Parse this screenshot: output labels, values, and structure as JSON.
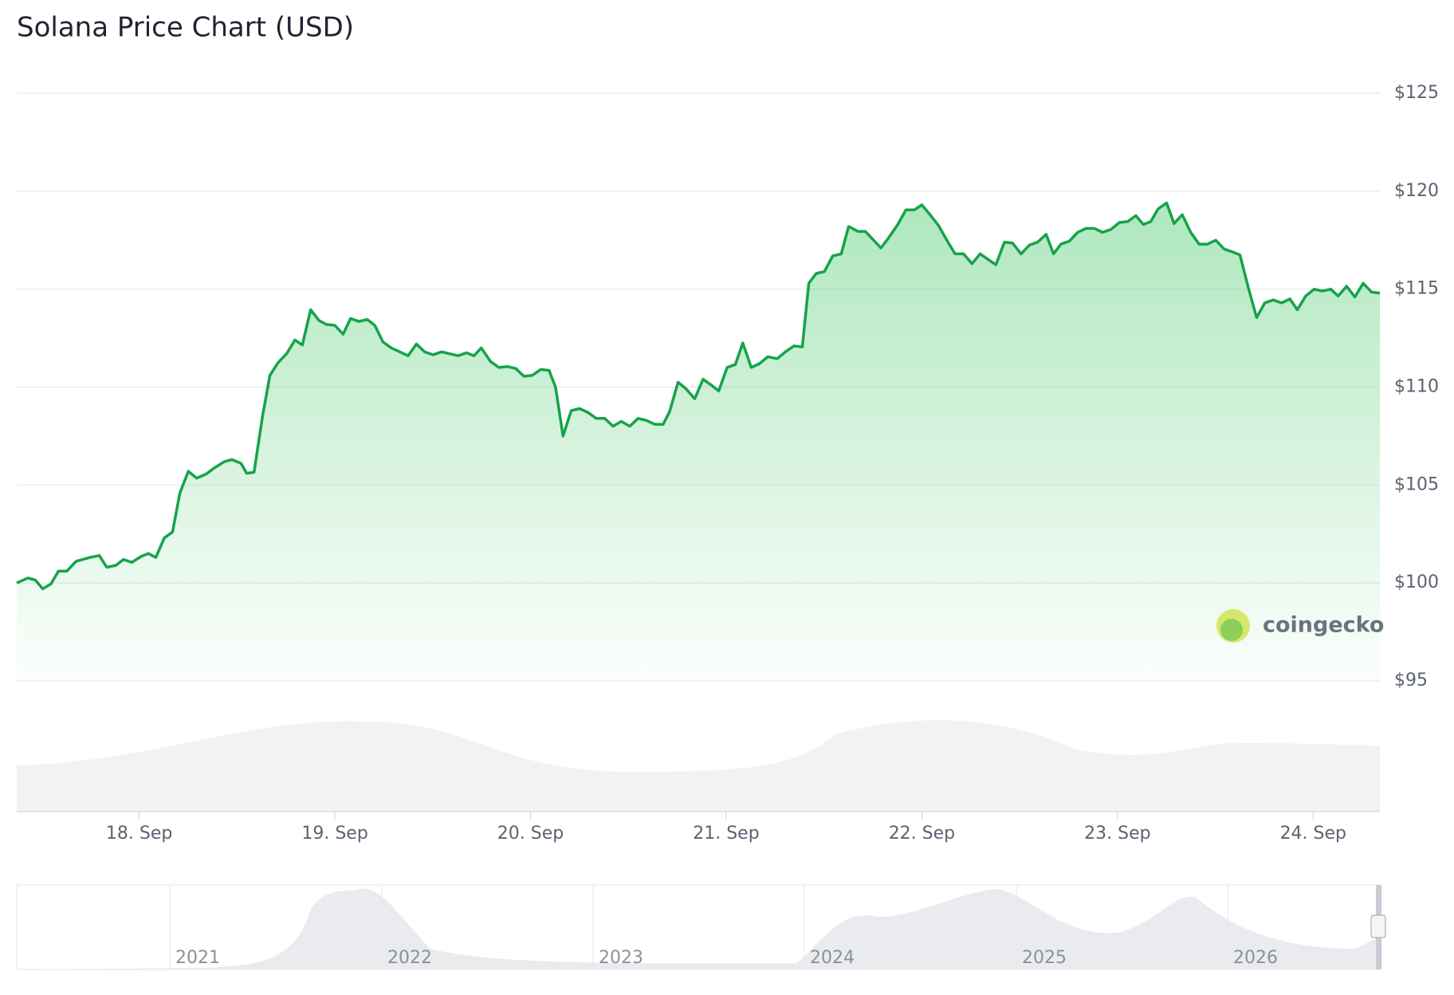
{
  "chart_data": {
    "type": "line",
    "title": "Solana Price Chart (USD)",
    "x": [
      17.374,
      17.431,
      17.469,
      17.507,
      17.549,
      17.587,
      17.63,
      17.677,
      17.748,
      17.796,
      17.834,
      17.881,
      17.919,
      17.962,
      18.009,
      18.047,
      18.085,
      18.128,
      18.17,
      18.208,
      18.251,
      18.293,
      18.341,
      18.388,
      18.436,
      18.474,
      18.521,
      18.549,
      18.587,
      18.63,
      18.668,
      18.71,
      18.753,
      18.796,
      18.834,
      18.876,
      18.919,
      18.957,
      19.0,
      19.042,
      19.08,
      19.123,
      19.166,
      19.204,
      19.246,
      19.289,
      19.374,
      19.417,
      19.459,
      19.502,
      19.545,
      19.587,
      19.63,
      19.673,
      19.711,
      19.748,
      19.796,
      19.839,
      19.881,
      19.924,
      19.967,
      20.009,
      20.052,
      20.095,
      20.128,
      20.166,
      20.208,
      20.251,
      20.294,
      20.336,
      20.379,
      20.422,
      20.464,
      20.507,
      20.55,
      20.592,
      20.635,
      20.678,
      20.711,
      20.754,
      20.796,
      20.839,
      20.882,
      20.924,
      20.962,
      21.005,
      21.047,
      21.085,
      21.128,
      21.171,
      21.213,
      21.261,
      21.303,
      21.346,
      21.389,
      21.422,
      21.46,
      21.502,
      21.545,
      21.588,
      21.626,
      21.673,
      21.711,
      21.754,
      21.791,
      21.829,
      21.877,
      21.919,
      21.962,
      22.0,
      22.042,
      22.085,
      22.128,
      22.17,
      22.213,
      22.256,
      22.298,
      22.341,
      22.379,
      22.422,
      22.464,
      22.507,
      22.55,
      22.592,
      22.635,
      22.673,
      22.711,
      22.754,
      22.796,
      22.839,
      22.882,
      22.924,
      22.967,
      23.009,
      23.052,
      23.094,
      23.132,
      23.17,
      23.208,
      23.251,
      23.289,
      23.331,
      23.374,
      23.417,
      23.46,
      23.502,
      23.545,
      23.588,
      23.626,
      23.668,
      23.711,
      23.753,
      23.796,
      23.839,
      23.881,
      23.919,
      23.962,
      24.005,
      24.047,
      24.09,
      24.128,
      24.171,
      24.213,
      24.256,
      24.299,
      24.341
    ],
    "values": [
      100.0,
      100.25,
      100.15,
      99.7,
      99.95,
      100.6,
      100.6,
      101.1,
      101.3,
      101.4,
      100.8,
      100.9,
      101.2,
      101.05,
      101.35,
      101.5,
      101.3,
      102.3,
      102.6,
      104.6,
      105.7,
      105.35,
      105.55,
      105.9,
      106.2,
      106.3,
      106.1,
      105.6,
      105.65,
      108.5,
      110.6,
      111.25,
      111.7,
      112.4,
      112.15,
      113.95,
      113.4,
      113.2,
      113.15,
      112.7,
      113.5,
      113.35,
      113.45,
      113.15,
      112.3,
      112.0,
      111.6,
      112.2,
      111.8,
      111.65,
      111.8,
      111.7,
      111.6,
      111.75,
      111.6,
      112.0,
      111.3,
      111.0,
      111.05,
      110.95,
      110.55,
      110.6,
      110.9,
      110.85,
      110.0,
      107.5,
      108.8,
      108.9,
      108.7,
      108.4,
      108.4,
      108.0,
      108.25,
      108.0,
      108.4,
      108.3,
      108.1,
      108.1,
      108.75,
      110.25,
      109.9,
      109.4,
      110.4,
      110.1,
      109.8,
      111.0,
      111.15,
      112.25,
      111.0,
      111.2,
      111.55,
      111.45,
      111.8,
      112.1,
      112.05,
      115.3,
      115.8,
      115.9,
      116.7,
      116.8,
      118.2,
      117.95,
      117.95,
      117.5,
      117.1,
      117.6,
      118.3,
      119.05,
      119.05,
      119.3,
      118.8,
      118.25,
      117.5,
      116.8,
      116.8,
      116.3,
      116.8,
      116.5,
      116.25,
      117.4,
      117.35,
      116.8,
      117.25,
      117.4,
      117.8,
      116.8,
      117.3,
      117.45,
      117.9,
      118.1,
      118.1,
      117.9,
      118.05,
      118.4,
      118.45,
      118.75,
      118.3,
      118.45,
      119.1,
      119.4,
      118.35,
      118.8,
      117.9,
      117.3,
      117.3,
      117.5,
      117.05,
      116.9,
      116.75,
      115.1,
      113.55,
      114.3,
      114.45,
      114.3,
      114.5,
      113.95,
      114.65,
      115.0,
      114.9,
      115.0,
      114.65,
      115.15,
      114.6,
      115.3,
      114.85,
      114.8
    ],
    "color": "#16a34a",
    "xlim": [
      17.374,
      24.341
    ],
    "xticks": [
      {
        "value": 18,
        "label": "18. Sep"
      },
      {
        "value": 19,
        "label": "19. Sep"
      },
      {
        "value": 20,
        "label": "20. Sep"
      },
      {
        "value": 21,
        "label": "21. Sep"
      },
      {
        "value": 22,
        "label": "22. Sep"
      },
      {
        "value": 23,
        "label": "23. Sep"
      },
      {
        "value": 24,
        "label": "24. Sep"
      }
    ],
    "ylim": [
      95,
      125
    ],
    "yticks": [
      {
        "value": 95,
        "label": "$95"
      },
      {
        "value": 100,
        "label": "$100"
      },
      {
        "value": 105,
        "label": "$105"
      },
      {
        "value": 110,
        "label": "$110"
      },
      {
        "value": 115,
        "label": "$115"
      },
      {
        "value": 120,
        "label": "$120"
      },
      {
        "value": 125,
        "label": "$125"
      }
    ],
    "grid": true
  },
  "watermark": "coingecko",
  "navigator": {
    "labels": [
      "2021",
      "2022",
      "2023",
      "2024",
      "2025",
      "2026"
    ]
  }
}
